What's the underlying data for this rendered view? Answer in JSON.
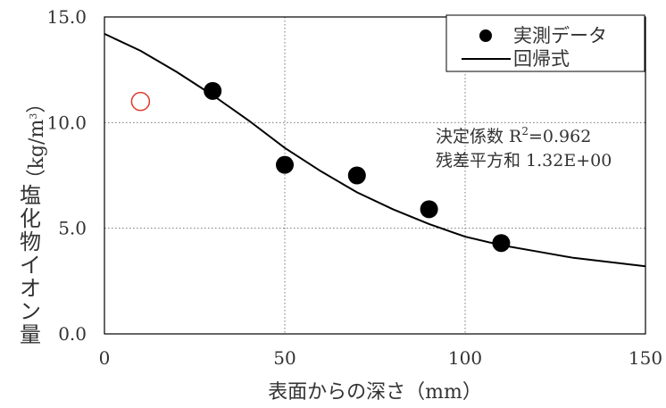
{
  "chart_data": {
    "type": "scatter",
    "title": "",
    "xlabel": "表面からの深さ（mm）",
    "ylabel": "塩化物イオン量",
    "ylabel_unit": "（kg/m",
    "ylabel_unit_sup": "3",
    "ylabel_unit_close": "）",
    "xlim": [
      0,
      150
    ],
    "ylim": [
      0,
      15
    ],
    "x_ticks": [
      "0",
      "50",
      "100",
      "150"
    ],
    "y_ticks": [
      "0.0",
      "5.0",
      "10.0",
      "15.0"
    ],
    "x_tick_values": [
      0,
      50,
      100,
      150
    ],
    "y_tick_values": [
      0,
      5,
      10,
      15
    ],
    "grid": true,
    "legend_position": "top-right",
    "series": [
      {
        "name": "実測データ",
        "kind": "points",
        "color": "#000000",
        "x": [
          30,
          50,
          70,
          90,
          110
        ],
        "y": [
          11.5,
          8.0,
          7.5,
          5.9,
          4.3
        ]
      },
      {
        "name": "回帰式",
        "kind": "line",
        "color": "#000000",
        "x": [
          0,
          10,
          20,
          30,
          40,
          50,
          60,
          70,
          80,
          90,
          100,
          110,
          120,
          130,
          140,
          150
        ],
        "y": [
          14.2,
          13.4,
          12.4,
          11.3,
          10.1,
          8.8,
          7.7,
          6.7,
          5.9,
          5.2,
          4.6,
          4.2,
          3.9,
          3.6,
          3.4,
          3.2
        ]
      }
    ],
    "extra_marker": {
      "x": 10,
      "y": 11.0,
      "color": "#e0392b"
    },
    "annotations": [
      {
        "prefix": "決定係数 R",
        "sup": "2",
        "suffix": "=0.962"
      },
      {
        "text": "残差平方和 1.32E+00"
      }
    ]
  }
}
